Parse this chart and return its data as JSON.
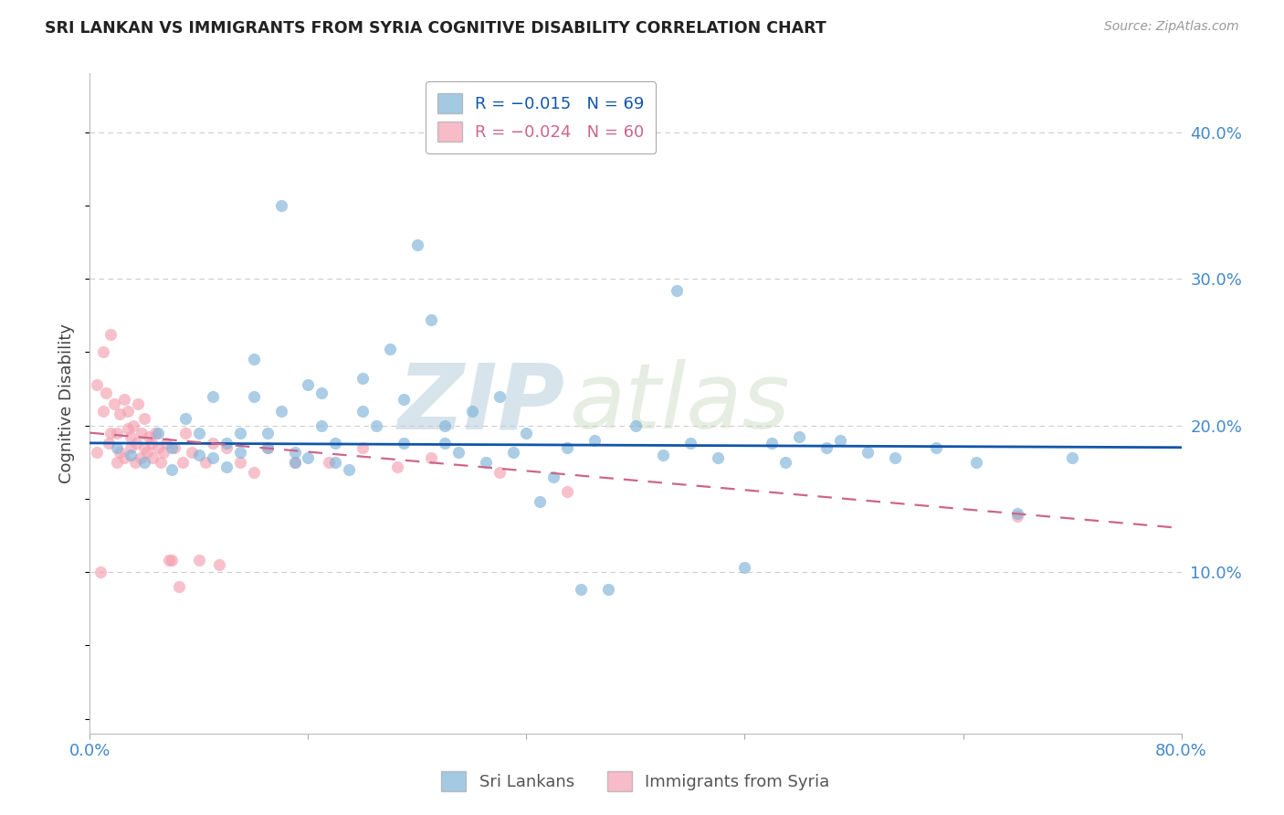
{
  "title": "SRI LANKAN VS IMMIGRANTS FROM SYRIA COGNITIVE DISABILITY CORRELATION CHART",
  "source": "Source: ZipAtlas.com",
  "ylabel": "Cognitive Disability",
  "xlim": [
    0.0,
    0.8
  ],
  "ylim": [
    -0.01,
    0.44
  ],
  "blue_color": "#7EB3D8",
  "pink_color": "#F4A0B0",
  "blue_line_color": "#1155AA",
  "pink_line_color": "#CC6688",
  "legend_R_blue": "R = −0.015",
  "legend_N_blue": "N = 69",
  "legend_R_pink": "R = −0.024",
  "legend_N_pink": "N = 60",
  "legend_label_blue": "Sri Lankans",
  "legend_label_pink": "Immigrants from Syria",
  "watermark_zip": "ZIP",
  "watermark_atlas": "atlas",
  "background_color": "#FFFFFF",
  "grid_color": "#CCCCCC",
  "title_color": "#222222",
  "axis_color": "#4488CC",
  "marker_size": 90,
  "blue_R": -0.015,
  "pink_R": -0.024,
  "blue_scatter_x": [
    0.02,
    0.03,
    0.04,
    0.05,
    0.06,
    0.06,
    0.07,
    0.08,
    0.08,
    0.09,
    0.09,
    0.1,
    0.1,
    0.11,
    0.11,
    0.12,
    0.12,
    0.13,
    0.13,
    0.14,
    0.14,
    0.15,
    0.15,
    0.16,
    0.16,
    0.17,
    0.17,
    0.18,
    0.18,
    0.19,
    0.2,
    0.2,
    0.21,
    0.22,
    0.23,
    0.23,
    0.24,
    0.25,
    0.26,
    0.26,
    0.27,
    0.28,
    0.29,
    0.3,
    0.31,
    0.32,
    0.33,
    0.34,
    0.35,
    0.36,
    0.37,
    0.38,
    0.4,
    0.42,
    0.43,
    0.44,
    0.46,
    0.48,
    0.5,
    0.51,
    0.52,
    0.54,
    0.55,
    0.57,
    0.59,
    0.62,
    0.65,
    0.68,
    0.72
  ],
  "blue_scatter_y": [
    0.185,
    0.18,
    0.175,
    0.195,
    0.185,
    0.17,
    0.205,
    0.18,
    0.195,
    0.22,
    0.178,
    0.188,
    0.172,
    0.195,
    0.182,
    0.245,
    0.22,
    0.195,
    0.185,
    0.35,
    0.21,
    0.182,
    0.175,
    0.228,
    0.178,
    0.222,
    0.2,
    0.175,
    0.188,
    0.17,
    0.21,
    0.232,
    0.2,
    0.252,
    0.218,
    0.188,
    0.323,
    0.272,
    0.2,
    0.188,
    0.182,
    0.21,
    0.175,
    0.22,
    0.182,
    0.195,
    0.148,
    0.165,
    0.185,
    0.088,
    0.19,
    0.088,
    0.2,
    0.18,
    0.292,
    0.188,
    0.178,
    0.103,
    0.188,
    0.175,
    0.192,
    0.185,
    0.19,
    0.182,
    0.178,
    0.185,
    0.175,
    0.14,
    0.178
  ],
  "pink_scatter_x": [
    0.005,
    0.005,
    0.008,
    0.01,
    0.01,
    0.012,
    0.014,
    0.015,
    0.015,
    0.018,
    0.02,
    0.02,
    0.022,
    0.022,
    0.025,
    0.025,
    0.028,
    0.028,
    0.03,
    0.03,
    0.032,
    0.033,
    0.034,
    0.035,
    0.037,
    0.038,
    0.04,
    0.04,
    0.042,
    0.043,
    0.045,
    0.046,
    0.048,
    0.05,
    0.052,
    0.054,
    0.056,
    0.058,
    0.06,
    0.062,
    0.065,
    0.068,
    0.07,
    0.075,
    0.08,
    0.085,
    0.09,
    0.095,
    0.1,
    0.11,
    0.12,
    0.13,
    0.15,
    0.175,
    0.2,
    0.225,
    0.25,
    0.3,
    0.35,
    0.68
  ],
  "pink_scatter_y": [
    0.182,
    0.228,
    0.1,
    0.21,
    0.25,
    0.222,
    0.188,
    0.262,
    0.195,
    0.215,
    0.195,
    0.175,
    0.208,
    0.182,
    0.218,
    0.178,
    0.198,
    0.21,
    0.185,
    0.192,
    0.2,
    0.175,
    0.188,
    0.215,
    0.178,
    0.195,
    0.185,
    0.205,
    0.182,
    0.192,
    0.188,
    0.178,
    0.195,
    0.185,
    0.175,
    0.182,
    0.188,
    0.108,
    0.108,
    0.185,
    0.09,
    0.175,
    0.195,
    0.182,
    0.108,
    0.175,
    0.188,
    0.105,
    0.185,
    0.175,
    0.168,
    0.185,
    0.175,
    0.175,
    0.185,
    0.172,
    0.178,
    0.168,
    0.155,
    0.138
  ]
}
